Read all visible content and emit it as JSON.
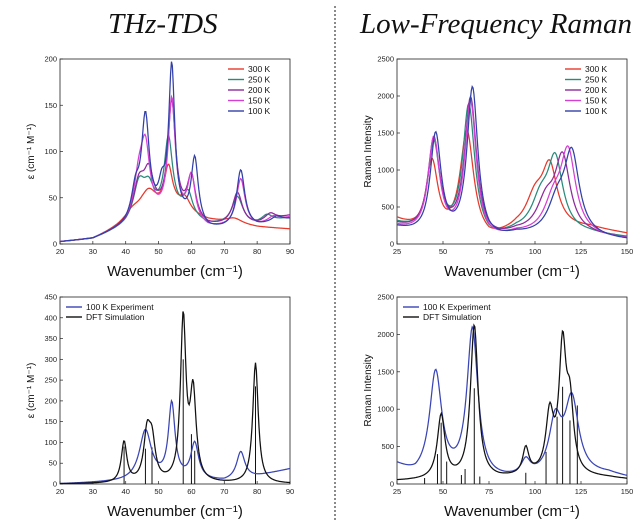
{
  "titles": {
    "left": "THz-TDS",
    "right": "Low-Frequency Raman"
  },
  "chart_data": [
    {
      "id": "thz-temp",
      "type": "line",
      "xlabel": "Wavenumber (cm⁻¹)",
      "ylabel": "ε (cm⁻¹ M⁻¹)",
      "xlim": [
        20,
        90
      ],
      "ylim": [
        0,
        200
      ],
      "xticks": [
        20,
        30,
        40,
        50,
        60,
        70,
        80,
        90
      ],
      "yticks": [
        0,
        50,
        100,
        150,
        200
      ],
      "legend": "top-right",
      "series": [
        {
          "name": "300 K",
          "color": "#e8382b",
          "baseline": [
            [
              20,
              2
            ],
            [
              30,
              5
            ],
            [
              40,
              20
            ],
            [
              45,
              28
            ],
            [
              55,
              35
            ],
            [
              65,
              25
            ],
            [
              80,
              18
            ],
            [
              90,
              16
            ]
          ],
          "peaks": [
            [
              42,
              10,
              3
            ],
            [
              47,
              25,
              3
            ],
            [
              53,
              45,
              1.5
            ],
            [
              58,
              15,
              2
            ],
            [
              73,
              6,
              3
            ]
          ]
        },
        {
          "name": "250 K",
          "color": "#2a8a7a",
          "baseline": [
            [
              20,
              2
            ],
            [
              30,
              5
            ],
            [
              40,
              18
            ],
            [
              45,
              28
            ],
            [
              55,
              32
            ],
            [
              65,
              20
            ],
            [
              80,
              20
            ],
            [
              90,
              28
            ]
          ],
          "peaks": [
            [
              44,
              35,
              2
            ],
            [
              47,
              28,
              2
            ],
            [
              53,
              80,
              1.5
            ],
            [
              59,
              25,
              1.6
            ],
            [
              74,
              30,
              2
            ],
            [
              83,
              8,
              2
            ]
          ]
        },
        {
          "name": "200 K",
          "color": "#8d2a9c",
          "baseline": [
            [
              20,
              2
            ],
            [
              30,
              5
            ],
            [
              40,
              18
            ],
            [
              45,
              28
            ],
            [
              55,
              30
            ],
            [
              65,
              18
            ],
            [
              80,
              20
            ],
            [
              90,
              30
            ]
          ],
          "peaks": [
            [
              44,
              36,
              2
            ],
            [
              47,
              42,
              1.8
            ],
            [
              54,
              120,
              1.4
            ],
            [
              60,
              45,
              1.5
            ],
            [
              74,
              35,
              1.8
            ],
            [
              84,
              8,
              2
            ]
          ]
        },
        {
          "name": "150 K",
          "color": "#d63fd4",
          "baseline": [
            [
              20,
              2
            ],
            [
              30,
              5
            ],
            [
              40,
              18
            ],
            [
              45,
              28
            ],
            [
              55,
              28
            ],
            [
              65,
              16
            ],
            [
              80,
              18
            ],
            [
              90,
              28
            ]
          ],
          "peaks": [
            [
              44,
              40,
              1.8
            ],
            [
              46,
              68,
              1.6
            ],
            [
              54,
              125,
              1.3
            ],
            [
              60,
              48,
              1.4
            ],
            [
              75,
              52,
              1.6
            ],
            [
              85,
              6,
              2
            ]
          ]
        },
        {
          "name": "100 K",
          "color": "#3240a8",
          "baseline": [
            [
              20,
              2
            ],
            [
              30,
              5
            ],
            [
              40,
              18
            ],
            [
              45,
              28
            ],
            [
              55,
              28
            ],
            [
              65,
              14
            ],
            [
              80,
              18
            ],
            [
              90,
              26
            ]
          ],
          "peaks": [
            [
              43,
              30,
              1.5
            ],
            [
              46,
              105,
              1.4
            ],
            [
              51,
              25,
              1.2
            ],
            [
              54,
              160,
              1.1
            ],
            [
              61,
              70,
              1.3
            ],
            [
              75,
              62,
              1.5
            ],
            [
              86,
              6,
              2
            ]
          ]
        }
      ]
    },
    {
      "id": "raman-temp",
      "type": "line",
      "xlabel": "Wavenumber (cm⁻¹)",
      "ylabel": "Raman Intensity",
      "xlim": [
        25,
        150
      ],
      "ylim": [
        0,
        2500
      ],
      "xticks": [
        25,
        50,
        75,
        100,
        125,
        150
      ],
      "yticks": [
        0,
        500,
        1000,
        1500,
        2000,
        2500
      ],
      "legend": "top-right",
      "series": [
        {
          "name": "300 K",
          "color": "#e8382b",
          "baseline": [
            [
              25,
              300
            ],
            [
              40,
              80
            ],
            [
              75,
              0
            ],
            [
              90,
              150
            ],
            [
              130,
              200
            ],
            [
              150,
              130
            ]
          ],
          "peaks": [
            [
              44,
              1000,
              4
            ],
            [
              63,
              1450,
              4.5
            ],
            [
              100,
              400,
              6
            ],
            [
              108,
              800,
              5
            ]
          ]
        },
        {
          "name": "250 K",
          "color": "#2a8a7a",
          "baseline": [
            [
              25,
              250
            ],
            [
              40,
              80
            ],
            [
              75,
              0
            ],
            [
              90,
              120
            ],
            [
              130,
              120
            ],
            [
              150,
              80
            ]
          ],
          "peaks": [
            [
              45,
              1250,
              4
            ],
            [
              64,
              1800,
              4
            ],
            [
              103,
              400,
              6
            ],
            [
              111,
              950,
              5
            ]
          ]
        },
        {
          "name": "200 K",
          "color": "#8d2a9c",
          "baseline": [
            [
              25,
              230
            ],
            [
              40,
              80
            ],
            [
              75,
              0
            ],
            [
              90,
              110
            ],
            [
              130,
              100
            ],
            [
              150,
              60
            ]
          ],
          "peaks": [
            [
              45,
              1300,
              4
            ],
            [
              65,
              1900,
              4
            ],
            [
              106,
              400,
              6
            ],
            [
              115,
              1000,
              5
            ]
          ]
        },
        {
          "name": "150 K",
          "color": "#d63fd4",
          "baseline": [
            [
              25,
              210
            ],
            [
              40,
              80
            ],
            [
              75,
              0
            ],
            [
              90,
              100
            ],
            [
              130,
              80
            ],
            [
              150,
              50
            ]
          ],
          "peaks": [
            [
              45,
              1320,
              3.8
            ],
            [
              65,
              1850,
              3.8
            ],
            [
              110,
              400,
              6
            ],
            [
              118,
              1080,
              5
            ]
          ]
        },
        {
          "name": "100 K",
          "color": "#3240a8",
          "baseline": [
            [
              25,
              200
            ],
            [
              40,
              80
            ],
            [
              75,
              0
            ],
            [
              90,
              90
            ],
            [
              130,
              60
            ],
            [
              150,
              40
            ]
          ],
          "peaks": [
            [
              46,
              1380,
              3.6
            ],
            [
              66,
              2050,
              3.6
            ],
            [
              112,
              400,
              6
            ],
            [
              120,
              1080,
              5
            ]
          ]
        }
      ]
    },
    {
      "id": "thz-dft",
      "type": "line",
      "xlabel": "Wavenumber (cm⁻¹)",
      "ylabel": "ε (cm⁻¹ M⁻¹)",
      "xlim": [
        20,
        90
      ],
      "ylim": [
        0,
        450
      ],
      "xticks": [
        20,
        30,
        40,
        50,
        60,
        70,
        80,
        90
      ],
      "yticks": [
        0,
        50,
        100,
        150,
        200,
        250,
        300,
        350,
        400,
        450
      ],
      "legend": "top-left",
      "series": [
        {
          "name": "100 K Experiment",
          "color": "#3a45b5",
          "baseline": [
            [
              20,
              0
            ],
            [
              40,
              5
            ],
            [
              50,
              8
            ],
            [
              60,
              10
            ],
            [
              70,
              5
            ],
            [
              80,
              18
            ],
            [
              90,
              36
            ]
          ],
          "peaks": [
            [
              46,
              120,
              2.2
            ],
            [
              54,
              180,
              1.2
            ],
            [
              61,
              85,
              1.4
            ],
            [
              75,
              65,
              1.5
            ]
          ]
        },
        {
          "name": "DFT Simulation",
          "color": "#111111",
          "baseline": [
            [
              20,
              0
            ],
            [
              90,
              0
            ]
          ],
          "peaks": [
            [
              39.5,
              98,
              1
            ],
            [
              46.5,
              110,
              1.2
            ],
            [
              48,
              90,
              1.2
            ],
            [
              57.5,
              390,
              1
            ],
            [
              60.5,
              210,
              1.1
            ],
            [
              79.5,
              290,
              1
            ]
          ]
        }
      ],
      "sticks": [
        [
          39.5,
          90
        ],
        [
          46,
          85
        ],
        [
          48,
          88
        ],
        [
          57.5,
          300
        ],
        [
          60,
          120
        ],
        [
          61,
          80
        ],
        [
          79.5,
          235
        ]
      ]
    },
    {
      "id": "raman-dft",
      "type": "line",
      "xlabel": "Wavenumber (cm⁻¹)",
      "ylabel": "Raman Intensity",
      "xlim": [
        25,
        150
      ],
      "ylim": [
        0,
        2500
      ],
      "xticks": [
        25,
        50,
        75,
        100,
        125,
        150
      ],
      "yticks": [
        0,
        500,
        1000,
        1500,
        2000,
        2500
      ],
      "legend": "top-left",
      "series": [
        {
          "name": "100 K Experiment",
          "color": "#3a45b5",
          "baseline": [
            [
              25,
              230
            ],
            [
              35,
              80
            ],
            [
              75,
              20
            ],
            [
              100,
              60
            ],
            [
              140,
              120
            ],
            [
              150,
              80
            ]
          ],
          "peaks": [
            [
              46,
              1400,
              4
            ],
            [
              66,
              2000,
              3.6
            ],
            [
              95,
              200,
              3
            ],
            [
              111,
              700,
              4
            ],
            [
              120,
              1000,
              4.5
            ]
          ]
        },
        {
          "name": "DFT Simulation",
          "color": "#111111",
          "baseline": [
            [
              25,
              40
            ],
            [
              80,
              60
            ],
            [
              100,
              100
            ],
            [
              140,
              80
            ],
            [
              150,
              60
            ]
          ],
          "peaks": [
            [
              49,
              850,
              2.5
            ],
            [
              67,
              2050,
              2.5
            ],
            [
              95,
              350,
              2
            ],
            [
              108,
              780,
              2.5
            ],
            [
              115,
              1650,
              2.3
            ],
            [
              119,
              850,
              2.3
            ]
          ]
        }
      ],
      "sticks": [
        [
          40,
          80
        ],
        [
          47,
          400
        ],
        [
          49,
          820
        ],
        [
          52,
          300
        ],
        [
          60,
          120
        ],
        [
          62,
          200
        ],
        [
          67,
          1280
        ],
        [
          70,
          100
        ],
        [
          95,
          150
        ],
        [
          106,
          430
        ],
        [
          112,
          900
        ],
        [
          115,
          1300
        ],
        [
          119,
          850
        ],
        [
          123,
          1050
        ]
      ]
    }
  ]
}
